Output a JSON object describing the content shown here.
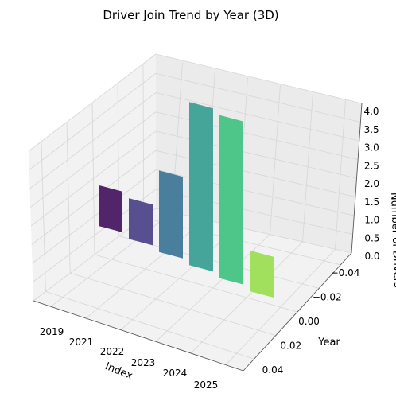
{
  "chart_data": {
    "type": "bar",
    "title": "Driver Join Trend by Year (3D)",
    "xlabel": "Index",
    "ylabel": "Year",
    "zlabel": "Number of Drivers",
    "categories": [
      "2019",
      "2021",
      "2022",
      "2023",
      "2024",
      "2025"
    ],
    "values": [
      1,
      1,
      2,
      4,
      4,
      1
    ],
    "ylim": [
      -0.05,
      0.05
    ],
    "yticks": [
      "−0.04",
      "−0.02",
      "0.00",
      "0.02",
      "0.04"
    ],
    "zlim": [
      0,
      4
    ],
    "zticks": [
      "0.0",
      "0.5",
      "1.0",
      "1.5",
      "2.0",
      "2.5",
      "3.0",
      "3.5",
      "4.0"
    ],
    "grid": true,
    "colors": [
      "#440154",
      "#414487",
      "#2a788e",
      "#22a884",
      "#3dbc74",
      "#7ad151"
    ],
    "bar_colors": [
      "#52256b",
      "#574f90",
      "#497f9d",
      "#45a599",
      "#4ec589",
      "#a0e05d"
    ]
  }
}
